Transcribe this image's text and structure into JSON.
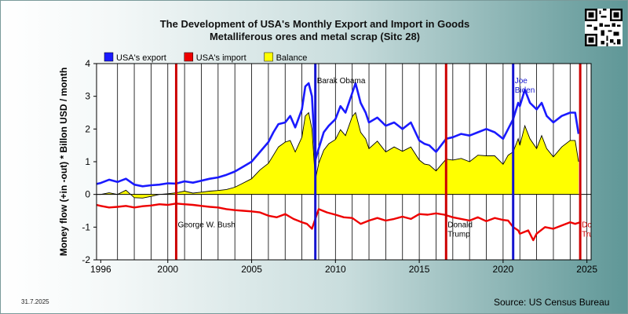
{
  "title": "The Development of USA's Monthly Export and Import in Goods",
  "subtitle": "Metalliferous ores and metal scrap (Sitc 28)",
  "date_stamp": "31.7.2025",
  "source": "Source: US Census Bureau",
  "colors": {
    "export": "#1a1aff",
    "import": "#ee0000",
    "balance": "#ffff00",
    "plot_bg": "#ffffff",
    "marker_blue": "#1414d0",
    "marker_red": "#cc0000"
  },
  "chart_data": {
    "type": "line",
    "title": "The Development of USA's Monthly Export and Import in Goods",
    "subtitle": "Metalliferous ores and metal scrap (Sitc 28)",
    "ylabel": "Money flow (+in -out) * Billon USD / month",
    "xlabel": "",
    "xlim": [
      1995.75,
      2025.25
    ],
    "ylim": [
      -2,
      4
    ],
    "x_ticks": [
      1996,
      2000,
      2005,
      2010,
      2015,
      2020,
      2025
    ],
    "x_tick_labels": [
      "1996",
      "2000",
      "2005",
      "2010",
      "2015",
      "2020",
      "2025"
    ],
    "y_ticks": [
      -2,
      -1,
      0,
      1,
      2,
      3,
      4
    ],
    "y_tick_labels": [
      "-2",
      "-1",
      "0",
      "1",
      "2",
      "3",
      "4"
    ],
    "vertical_year_lines": [
      1997,
      1998,
      1999,
      2000,
      2001,
      2002,
      2003,
      2004,
      2005,
      2006,
      2007,
      2008,
      2009,
      2010,
      2011,
      2012,
      2013,
      2014,
      2015,
      2016,
      2017,
      2018,
      2019,
      2020,
      2021,
      2022,
      2023,
      2024,
      2025
    ],
    "grid": false,
    "legend_position": "top-left",
    "legend": [
      {
        "label": "USA's export",
        "color": "#1a1aff"
      },
      {
        "label": "USA's import",
        "color": "#ee0000"
      },
      {
        "label": "Balance",
        "color": "#ffff00"
      }
    ],
    "events": [
      {
        "x": 2000.5,
        "color": "#cc0000",
        "label": "George W. Bush",
        "label_y": -1.0
      },
      {
        "x": 2008.8,
        "color": "#1414d0",
        "label": "Barak Obama",
        "label_y": 3.4
      },
      {
        "x": 2016.6,
        "color": "#cc0000",
        "label": "Donald Trump",
        "label_y": -1.0
      },
      {
        "x": 2020.6,
        "color": "#1414d0",
        "label": "Joe Biden",
        "label_y": 3.4
      },
      {
        "x": 2024.6,
        "color": "#cc0000",
        "label": "Donald Trump",
        "label_y": -1.0
      }
    ],
    "series": [
      {
        "name": "USA's export",
        "x": [
          1995.75,
          1996,
          1996.5,
          1997,
          1997.5,
          1998,
          1998.5,
          1999,
          1999.5,
          2000,
          2000.5,
          2001,
          2001.5,
          2002,
          2002.5,
          2003,
          2003.5,
          2004,
          2004.5,
          2005,
          2005.5,
          2006,
          2006.3,
          2006.6,
          2007,
          2007.3,
          2007.6,
          2008,
          2008.2,
          2008.4,
          2008.6,
          2008.8,
          2009,
          2009.3,
          2009.6,
          2010,
          2010.3,
          2010.6,
          2011,
          2011.2,
          2011.5,
          2011.8,
          2012,
          2012.5,
          2013,
          2013.5,
          2014,
          2014.5,
          2015,
          2015.3,
          2015.6,
          2016,
          2016.3,
          2016.6,
          2017,
          2017.5,
          2018,
          2018.5,
          2019,
          2019.5,
          2020,
          2020.3,
          2020.6,
          2020.9,
          2021,
          2021.3,
          2021.6,
          2022,
          2022.3,
          2022.6,
          2023,
          2023.5,
          2024,
          2024.3,
          2024.5
        ],
        "values": [
          0.32,
          0.35,
          0.45,
          0.38,
          0.48,
          0.3,
          0.25,
          0.28,
          0.3,
          0.34,
          0.33,
          0.4,
          0.36,
          0.42,
          0.48,
          0.52,
          0.6,
          0.7,
          0.85,
          1.0,
          1.3,
          1.6,
          1.9,
          2.15,
          2.2,
          2.4,
          2.05,
          2.6,
          3.3,
          3.4,
          3.0,
          1.05,
          1.4,
          1.9,
          2.1,
          2.3,
          2.7,
          2.5,
          3.1,
          3.4,
          2.8,
          2.5,
          2.2,
          2.35,
          2.1,
          2.2,
          2.0,
          2.2,
          1.65,
          1.55,
          1.5,
          1.3,
          1.5,
          1.7,
          1.75,
          1.85,
          1.8,
          1.9,
          2.0,
          1.9,
          1.7,
          2.0,
          2.3,
          2.8,
          2.7,
          3.2,
          2.8,
          2.6,
          2.8,
          2.4,
          2.2,
          2.4,
          2.5,
          2.5,
          1.85
        ]
      },
      {
        "name": "USA's import",
        "x": [
          1995.75,
          1996,
          1996.5,
          1997,
          1997.5,
          1998,
          1998.5,
          1999,
          1999.5,
          2000,
          2000.5,
          2001,
          2001.5,
          2002,
          2002.5,
          2003,
          2003.5,
          2004,
          2004.5,
          2005,
          2005.5,
          2006,
          2006.5,
          2007,
          2007.5,
          2008,
          2008.3,
          2008.6,
          2008.9,
          2009,
          2009.5,
          2010,
          2010.5,
          2011,
          2011.5,
          2012,
          2012.5,
          2013,
          2013.5,
          2014,
          2014.5,
          2015,
          2015.5,
          2016,
          2016.5,
          2017,
          2017.5,
          2018,
          2018.5,
          2019,
          2019.5,
          2020,
          2020.3,
          2020.6,
          2020.9,
          2021,
          2021.5,
          2021.8,
          2022,
          2022.5,
          2023,
          2023.5,
          2024,
          2024.3,
          2024.6
        ],
        "values": [
          -0.32,
          -0.35,
          -0.4,
          -0.38,
          -0.35,
          -0.4,
          -0.36,
          -0.34,
          -0.3,
          -0.32,
          -0.28,
          -0.3,
          -0.32,
          -0.35,
          -0.38,
          -0.4,
          -0.45,
          -0.48,
          -0.5,
          -0.52,
          -0.55,
          -0.65,
          -0.7,
          -0.6,
          -0.75,
          -0.85,
          -0.9,
          -1.05,
          -0.6,
          -0.45,
          -0.55,
          -0.62,
          -0.7,
          -0.72,
          -0.9,
          -0.8,
          -0.72,
          -0.8,
          -0.75,
          -0.68,
          -0.75,
          -0.6,
          -0.62,
          -0.58,
          -0.62,
          -0.7,
          -0.75,
          -0.8,
          -0.7,
          -0.82,
          -0.72,
          -0.78,
          -0.8,
          -1.0,
          -1.1,
          -1.2,
          -1.1,
          -1.4,
          -1.2,
          -1.0,
          -1.05,
          -0.95,
          -0.85,
          -0.9,
          -0.85
        ]
      },
      {
        "name": "Balance",
        "x": [
          1995.75,
          1996,
          1996.5,
          1997,
          1997.5,
          1998,
          1998.5,
          1999,
          1999.5,
          2000,
          2000.5,
          2001,
          2001.5,
          2002,
          2002.5,
          2003,
          2003.5,
          2004,
          2004.5,
          2005,
          2005.5,
          2006,
          2006.3,
          2006.6,
          2007,
          2007.3,
          2007.6,
          2008,
          2008.2,
          2008.4,
          2008.6,
          2008.8,
          2009,
          2009.3,
          2009.6,
          2010,
          2010.3,
          2010.6,
          2011,
          2011.2,
          2011.5,
          2011.8,
          2012,
          2012.5,
          2013,
          2013.5,
          2014,
          2014.5,
          2015,
          2015.3,
          2015.6,
          2016,
          2016.3,
          2016.6,
          2017,
          2017.5,
          2018,
          2018.5,
          2019,
          2019.5,
          2020,
          2020.3,
          2020.6,
          2020.9,
          2021,
          2021.3,
          2021.6,
          2022,
          2022.3,
          2022.6,
          2023,
          2023.5,
          2024,
          2024.3,
          2024.5
        ],
        "values": [
          0.0,
          0.0,
          0.05,
          0.0,
          0.13,
          -0.1,
          -0.11,
          -0.06,
          0.0,
          0.02,
          0.05,
          0.1,
          0.04,
          0.07,
          0.1,
          0.12,
          0.15,
          0.22,
          0.35,
          0.48,
          0.75,
          0.95,
          1.2,
          1.45,
          1.6,
          1.65,
          1.3,
          1.75,
          2.4,
          2.5,
          2.0,
          0.45,
          0.95,
          1.35,
          1.55,
          1.68,
          1.98,
          1.8,
          2.38,
          2.5,
          1.9,
          1.7,
          1.4,
          1.63,
          1.3,
          1.45,
          1.32,
          1.45,
          1.05,
          0.93,
          0.9,
          0.72,
          0.9,
          1.08,
          1.05,
          1.1,
          1.0,
          1.2,
          1.18,
          1.18,
          0.92,
          1.2,
          1.3,
          1.7,
          1.5,
          2.1,
          1.7,
          1.4,
          1.8,
          1.4,
          1.15,
          1.45,
          1.65,
          1.65,
          1.0
        ]
      }
    ]
  }
}
